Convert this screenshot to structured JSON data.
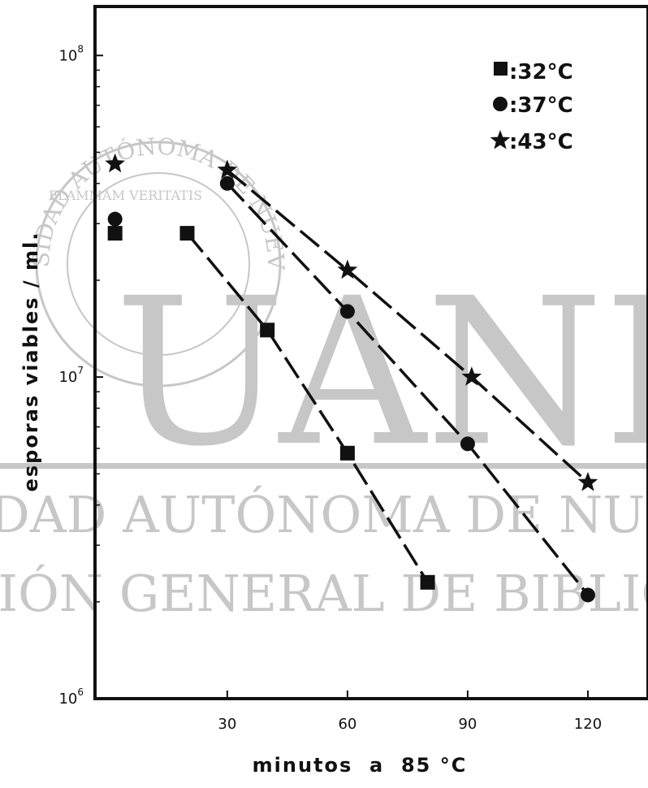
{
  "chart_data": {
    "type": "scatter",
    "title": "",
    "xlabel": "minutos  a  85 °C",
    "ylabel": "esporas  viables / ml.",
    "x_ticks": [
      30,
      60,
      90,
      120
    ],
    "y_ticks": [
      {
        "value": 1000000,
        "base": "10",
        "exp": "6"
      },
      {
        "value": 10000000,
        "base": "10",
        "exp": "7"
      },
      {
        "value": 100000000,
        "base": "10",
        "exp": "8"
      }
    ],
    "xlim": [
      -3,
      135
    ],
    "ylim": [
      1000000,
      142000000
    ],
    "y_scale": "log",
    "grid": false,
    "legend_position": "top-right",
    "series": [
      {
        "name": ":32°C",
        "marker": "square",
        "color": "#111111",
        "points": [
          [
            2,
            28000000
          ],
          [
            20,
            28000000
          ],
          [
            40,
            14000000
          ],
          [
            60,
            5800000
          ],
          [
            80,
            2300000
          ]
        ],
        "line_from": 1
      },
      {
        "name": ":37°C",
        "marker": "circle",
        "color": "#111111",
        "points": [
          [
            2,
            31000000
          ],
          [
            30,
            40000000
          ],
          [
            60,
            16000000
          ],
          [
            90,
            6200000
          ],
          [
            120,
            2100000
          ]
        ],
        "line_from": 1
      },
      {
        "name": ":43°C",
        "marker": "star",
        "color": "#111111",
        "points": [
          [
            2,
            46000000
          ],
          [
            30,
            44000000
          ],
          [
            60,
            21500000
          ],
          [
            91,
            10000000
          ],
          [
            120,
            4700000
          ]
        ],
        "line_from": 1
      }
    ]
  },
  "watermark": {
    "line1": "UANL",
    "line2": "UNIVERSIDAD AUTÓNOMA DE NUEVO LEÓN",
    "line3": "DIRECCIÓN GENERAL DE BIBLIOTECAS",
    "seal_text": "UNIVERSIDAD AUTÓNOMA DE NUEVO LEÓN",
    "seal_motto": "FLAMMAM VERITATIS"
  }
}
